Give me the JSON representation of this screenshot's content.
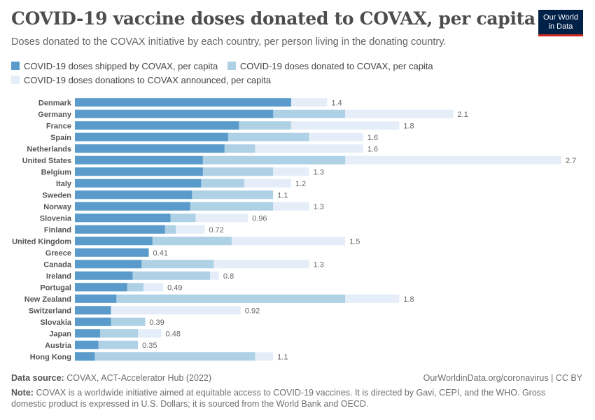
{
  "header": {
    "title": "COVID-19 vaccine doses donated to COVAX, per capita",
    "subtitle": "Doses donated to the COVAX initiative by each country, per person living in the donating country.",
    "logo_line1": "Our World",
    "logo_line2": "in Data"
  },
  "colors": {
    "shipped": "#5a9bcb",
    "donated": "#aed1e6",
    "announced": "#e5eef8"
  },
  "chart_data": {
    "type": "bar",
    "orientation": "horizontal",
    "stacked": false,
    "title": "COVID-19 vaccine doses donated to COVAX, per capita",
    "categories": [
      "Denmark",
      "Germany",
      "France",
      "Spain",
      "Netherlands",
      "United States",
      "Belgium",
      "Italy",
      "Sweden",
      "Norway",
      "Slovenia",
      "Finland",
      "United Kingdom",
      "Greece",
      "Canada",
      "Ireland",
      "Portugal",
      "New Zealand",
      "Switzerland",
      "Slovakia",
      "Japan",
      "Austria",
      "Hong Kong"
    ],
    "series": [
      {
        "name": "COVID-19 doses shipped by COVAX, per capita",
        "values": [
          1.2,
          1.1,
          0.91,
          0.85,
          0.83,
          0.71,
          0.71,
          0.7,
          0.65,
          0.64,
          0.53,
          0.5,
          0.43,
          0.41,
          0.37,
          0.32,
          0.29,
          0.23,
          0.2,
          0.2,
          0.14,
          0.13,
          0.11
        ]
      },
      {
        "name": "COVID-19 doses donated to COVAX, per capita",
        "values": [
          1.2,
          1.5,
          1.2,
          1.3,
          1.0,
          1.5,
          1.1,
          0.94,
          1.1,
          1.1,
          0.67,
          0.56,
          0.87,
          0.41,
          0.77,
          0.75,
          0.38,
          1.5,
          0.2,
          0.39,
          0.35,
          0.35,
          1.0
        ]
      },
      {
        "name": "COVID-19 doses donations to COVAX announced, per capita",
        "values": [
          1.4,
          2.1,
          1.8,
          1.6,
          1.6,
          2.7,
          1.3,
          1.2,
          1.1,
          1.3,
          0.96,
          0.72,
          1.5,
          0.41,
          1.3,
          0.8,
          0.49,
          1.8,
          0.92,
          0.39,
          0.48,
          0.35,
          1.1
        ]
      }
    ],
    "value_labels": [
      "1.4",
      "2.1",
      "1.8",
      "1.6",
      "1.6",
      "2.7",
      "1.3",
      "1.2",
      "1.1",
      "1.3",
      "0.96",
      "0.72",
      "1.5",
      "0.41",
      "1.3",
      "0.8",
      "0.49",
      "1.8",
      "0.92",
      "0.39",
      "0.48",
      "0.35",
      "1.1"
    ],
    "xlim": [
      0,
      2.7
    ],
    "legend_position": "top-left",
    "xlabel": "",
    "ylabel": ""
  },
  "footer": {
    "source_label": "Data source:",
    "source_text": "COVAX, ACT-Accelerator Hub (2022)",
    "credit": "OurWorldinData.org/coronavirus | CC BY",
    "note_label": "Note:",
    "note_text": "COVAX is a worldwide initiative aimed at equitable access to COVID-19 vaccines. It is directed by Gavi, CEPI, and the WHO. Gross domestic product is expressed in U.S. Dollars; it is sourced from the World Bank and OECD."
  }
}
